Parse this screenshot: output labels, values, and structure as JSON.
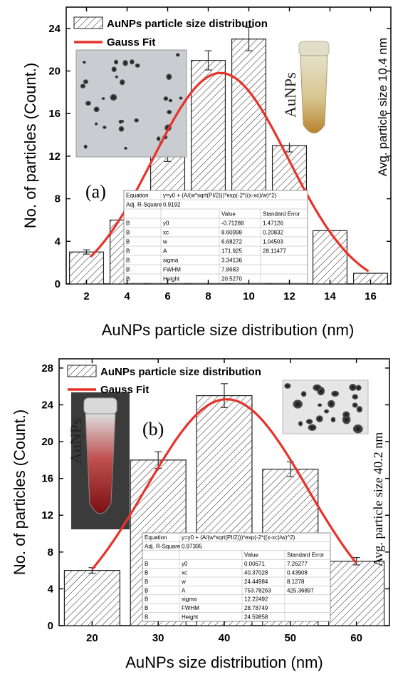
{
  "chart_data": [
    {
      "type": "bar",
      "panel_label": "(a)",
      "xlabel": "AuNPs particle size distribution (nm)",
      "ylabel": "No. of particles (Count.)",
      "right_label": "Avg. particle size 10.4 nm",
      "inset_photo_label": "AuNPs",
      "xlim": [
        1,
        17
      ],
      "ylim": [
        0,
        26
      ],
      "xticks": [
        "2",
        "4",
        "6",
        "8",
        "10",
        "12",
        "14",
        "16"
      ],
      "yticks": [
        "0",
        "4",
        "8",
        "12",
        "16",
        "20",
        "24"
      ],
      "legend": [
        "AuNPs particle size distribution",
        "Gauss Fit"
      ],
      "categories": [
        2,
        4,
        6,
        8,
        10,
        12,
        14,
        16
      ],
      "values": [
        3,
        6,
        12,
        21,
        23,
        13,
        5,
        1
      ],
      "errors": [
        0.2,
        0.3,
        0.5,
        0.9,
        1.1,
        0.6,
        0,
        0
      ],
      "fit": {
        "y0": -0.71288,
        "xc": 8.60998,
        "w": 6.68272,
        "A": 171.925,
        "x_range": [
          2.2,
          15.9
        ]
      },
      "table": {
        "rows": [
          [
            "Equation",
            "y=y0 + (A/(w*sqrt(PI/2)))*exp(-2*((x-xc)/w)^2)",
            "",
            ""
          ],
          [
            "Adj. R-Square",
            "0.9192",
            "",
            ""
          ],
          [
            "",
            "",
            "Value",
            "Standard Error"
          ],
          [
            "B",
            "y0",
            "-0.71288",
            "1.47126"
          ],
          [
            "B",
            "xc",
            "8.60998",
            "0.20832"
          ],
          [
            "B",
            "w",
            "6.68272",
            "1.04503"
          ],
          [
            "B",
            "A",
            "171.925",
            "28.11477"
          ],
          [
            "B",
            "sigma",
            "3.34136",
            ""
          ],
          [
            "B",
            "FWHM",
            "7.8683",
            ""
          ],
          [
            "B",
            "Height",
            "20.5270",
            ""
          ]
        ]
      },
      "colors": {
        "fit": "#e8322a",
        "bar_stroke": "#222222"
      }
    },
    {
      "type": "bar",
      "panel_label": "(b)",
      "xlabel": "AuNPs size distribution (nm)",
      "ylabel": "No. of particles (Count.)",
      "right_label": "Avg. particle size 40.2 nm",
      "inset_photo_label": "AuNPs",
      "xlim": [
        15,
        65
      ],
      "ylim": [
        0,
        29
      ],
      "xticks": [
        "20",
        "30",
        "40",
        "50",
        "60"
      ],
      "yticks": [
        "0",
        "4",
        "8",
        "12",
        "16",
        "20",
        "24",
        "28"
      ],
      "legend": [
        "AuNPs particle size distribution",
        "Gauss Fit"
      ],
      "categories": [
        20,
        30,
        40,
        50,
        60
      ],
      "values": [
        6,
        18,
        25,
        17,
        7
      ],
      "errors": [
        0.3,
        0.9,
        1.3,
        0.8,
        0.4
      ],
      "fit": {
        "y0": 0.00671,
        "xc": 40.37028,
        "w": 24.44984,
        "A": 753.78263,
        "x_range": [
          20,
          60
        ]
      },
      "table": {
        "rows": [
          [
            "Equation",
            "y=y0 + (A/(w*sqrt(PI/2)))*exp(-2*((x-xc)/w)^2)",
            "",
            ""
          ],
          [
            "Adj. R-Square",
            "0.97395",
            "",
            ""
          ],
          [
            "",
            "",
            "Value",
            "Standard Error"
          ],
          [
            "B",
            "y0",
            "0.00671",
            "7.26277"
          ],
          [
            "B",
            "xc",
            "40.37028",
            "0.43908"
          ],
          [
            "B",
            "w",
            "24.44984",
            "8.1278"
          ],
          [
            "B",
            "A",
            "753.78263",
            "425.36897"
          ],
          [
            "B",
            "sigma",
            "12.22492",
            ""
          ],
          [
            "B",
            "FWHM",
            "28.78749",
            ""
          ],
          [
            "B",
            "Height",
            "24.59858",
            ""
          ]
        ]
      },
      "colors": {
        "fit": "#e8322a",
        "bar_stroke": "#222222"
      }
    }
  ]
}
